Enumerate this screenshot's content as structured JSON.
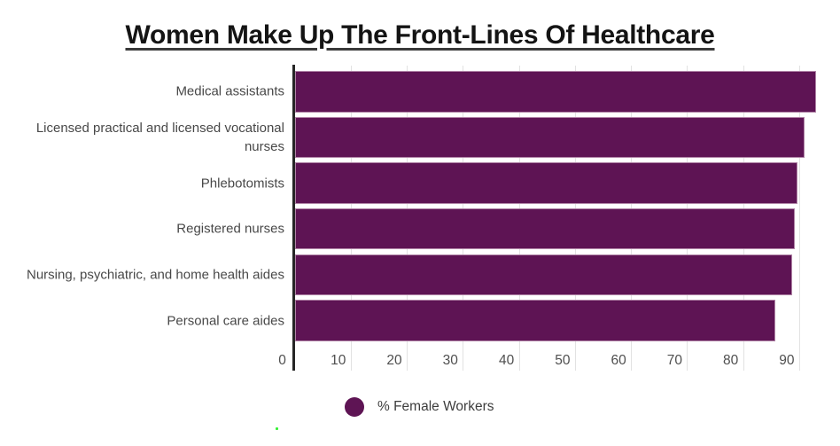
{
  "title": "Women Make Up The Front-Lines Of Healthcare",
  "legend": {
    "label": "% Female Workers"
  },
  "chart_data": {
    "type": "bar",
    "orientation": "horizontal",
    "title": "Women Make Up The Front-Lines Of Healthcare",
    "categories": [
      "Medical assistants",
      "Licensed practical and licensed vocational nurses",
      "Phlebotomists",
      "Registered nurses",
      "Nursing, psychiatric, and home health aides",
      "Personal care aides"
    ],
    "series": [
      {
        "name": "% Female Workers",
        "values": [
          92.9,
          90.9,
          89.6,
          89.1,
          88.6,
          85.7
        ]
      }
    ],
    "xlabel": "",
    "ylabel": "",
    "xlim": [
      0,
      97
    ],
    "xticks": [
      0,
      10,
      20,
      30,
      40,
      50,
      60,
      70,
      80,
      90
    ],
    "grid": "vertical",
    "legend_position": "bottom"
  },
  "colors": {
    "bar": "#5e1454",
    "bar_border": "#b084a6",
    "axis": "#262626",
    "gridline": "#e2e2e2",
    "title": "#141414",
    "underline": "#3a3a3a",
    "category_text": "#484848",
    "tick_text": "#4f4f4f",
    "legend_text": "#3d3d3d",
    "green_dot": "#35f035"
  }
}
